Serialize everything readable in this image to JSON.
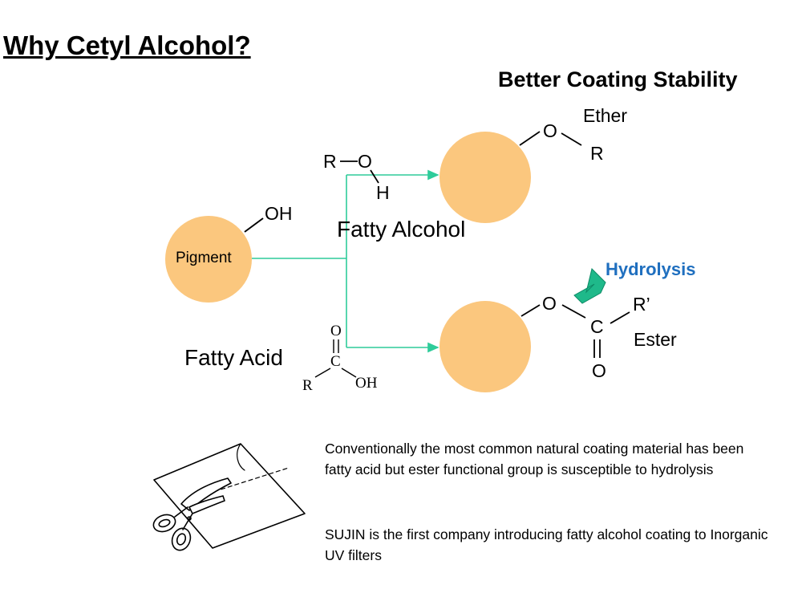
{
  "title": "Why Cetyl Alcohol?",
  "heading": "Better Coating Stability",
  "pigment_label": "Pigment",
  "pigment_group": "OH",
  "fatty_alcohol": {
    "label": "Fatty Alcohol",
    "r": "R",
    "o": "O",
    "h": "H"
  },
  "fatty_acid": {
    "label": "Fatty Acid",
    "o_top": "O",
    "c": "C",
    "r": "R",
    "oh": "OH"
  },
  "ether": {
    "label": "Ether",
    "o": "O",
    "r": "R"
  },
  "ester": {
    "label": "Ester",
    "o": "O",
    "c": "C",
    "r": "R’",
    "o_bottom": "O"
  },
  "hydrolysis": "Hydrolysis",
  "description": {
    "paragraph1": "Conventionally the most common natural coating material has been fatty acid but ester functional group is susceptible to hydrolysis",
    "paragraph2": "SUJIN is the first company introducing fatty alcohol coating to Inorganic UV filters"
  },
  "colors": {
    "particle": "#fbc77e",
    "arrow": "#2ecc9a",
    "hydrolysis_arrow": "#1fb98a",
    "hydrolysis_text": "#1f6fbf"
  }
}
